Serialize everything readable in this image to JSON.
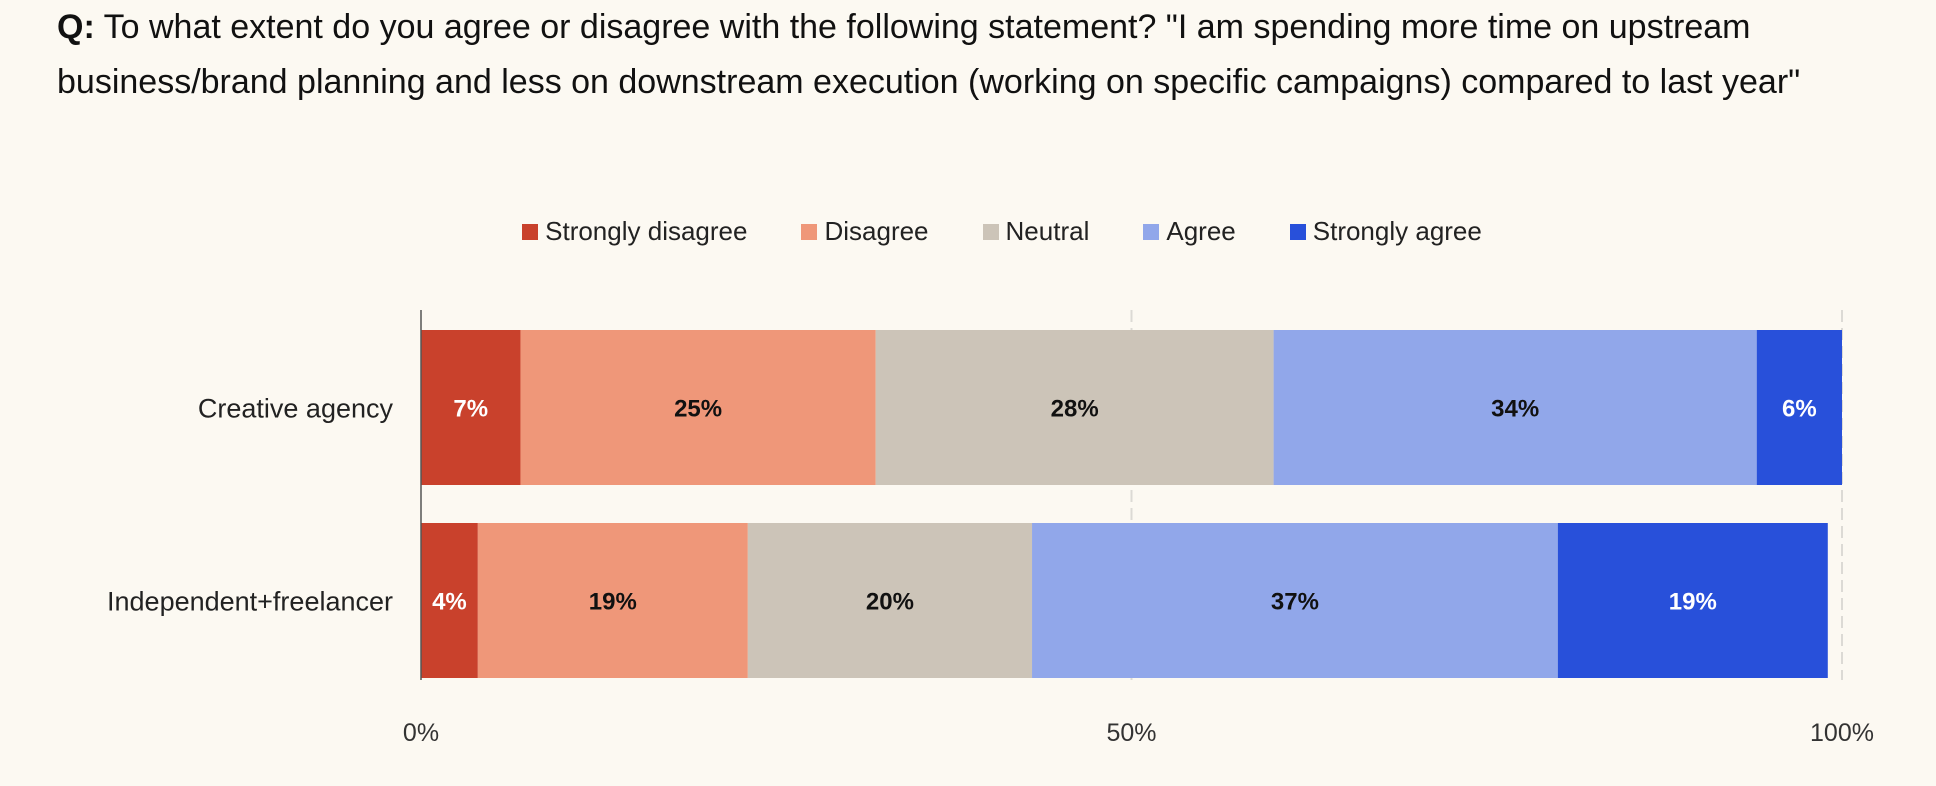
{
  "question": {
    "prefix": "Q:",
    "text": "To what extent do you agree or disagree with the following statement? \"I am spending more time on upstream business/brand planning and less on downstream execution (working on specific campaigns) compared to last year\""
  },
  "chart_data": {
    "type": "bar",
    "orientation": "horizontal",
    "stacked": true,
    "title": "To what extent do you agree or disagree with the following statement? \"I am spending more time on upstream business/brand planning and less on downstream execution (working on specific campaigns) compared to last year\"",
    "categories": [
      "Creative agency",
      "Independent+freelancer"
    ],
    "series": [
      {
        "name": "Strongly disagree",
        "color": "#c9412c",
        "label_color": "#ffffff",
        "values": [
          7,
          4
        ]
      },
      {
        "name": "Disagree",
        "color": "#ef9779",
        "label_color": "#111111",
        "values": [
          25,
          19
        ]
      },
      {
        "name": "Neutral",
        "color": "#ccc4b8",
        "label_color": "#111111",
        "values": [
          28,
          20
        ]
      },
      {
        "name": "Agree",
        "color": "#91a7ea",
        "label_color": "#111111",
        "values": [
          34,
          37
        ]
      },
      {
        "name": "Strongly agree",
        "color": "#2850da",
        "label_color": "#ffffff",
        "values": [
          6,
          19
        ]
      }
    ],
    "value_suffix": "%",
    "xlim": [
      0,
      100
    ],
    "xticks": [
      0,
      50,
      100
    ],
    "xtick_labels": [
      "0%",
      "50%",
      "100%"
    ],
    "xlabel": "",
    "ylabel": "",
    "legend_position": "top-center",
    "grid": "vertical-dashed"
  }
}
